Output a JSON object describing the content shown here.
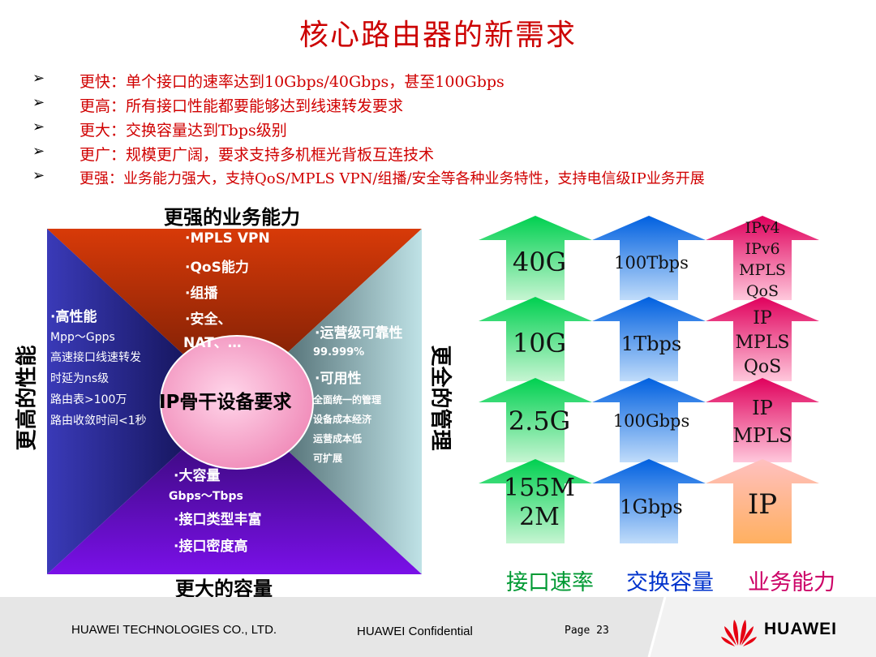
{
  "title": "核心路由器的新需求",
  "bullets": [
    {
      "mark": "➢",
      "text": "更快：单个接口的速率达到10Gbps/40Gbps，甚至100Gbps"
    },
    {
      "mark": "➢",
      "text": "更高：所有接口性能都要能够达到线速转发要求"
    },
    {
      "mark": "➢",
      "text": "更大：交换容量达到Tbps级别"
    },
    {
      "mark": "➢",
      "text": "更广：规模更广阔，要求支持多机框光背板互连技术"
    },
    {
      "mark": "➢",
      "text": "更强：业务能力强大，支持QoS/MPLS VPN/组播/安全等各种业务特性，支持电信级IP业务开展"
    }
  ],
  "diagram": {
    "top_label": "更强的业务能力",
    "bottom_label": "更大的容量",
    "left_label": "更高的性能",
    "right_label": "更全的管理",
    "center": "IP骨干设备要求",
    "top_items": [
      "·MPLS VPN",
      "·QoS能力",
      "·组播",
      "·安全、",
      "NAT、…"
    ],
    "left_items": [
      "·高性能",
      "Mpp～Gpps",
      "高速接口线速转发",
      "时延为ns级",
      "路由表>100万",
      "路由收敛时间<1秒"
    ],
    "right_items": [
      "·运营级可靠性",
      "99.999%",
      "·可用性",
      "全面统一的管理",
      "设备成本经济",
      "运营成本低",
      "可扩展"
    ],
    "bottom_items": [
      "·大容量",
      "Gbps～Tbps",
      "·接口类型丰富",
      "·接口密度高"
    ]
  },
  "columns": [
    {
      "caption": "接口速率",
      "caption_color": "#009933",
      "levels": [
        "40G",
        "10G",
        "2.5G",
        "155M\n2M"
      ]
    },
    {
      "caption": "交换容量",
      "caption_color": "#0033cc",
      "levels": [
        "100Tbps",
        "1Tbps",
        "100Gbps",
        "1Gbps"
      ]
    },
    {
      "caption": "业务能力",
      "caption_color": "#cc0066",
      "levels": [
        "IPv4\nIPv6\nMPLS\nQoS",
        "IP\nMPLS\nQoS",
        "IP\nMPLS",
        "IP"
      ]
    }
  ],
  "footer": {
    "company": "HUAWEI TECHNOLOGIES CO., LTD.",
    "confidential": "HUAWEI Confidential",
    "page": "Page 23",
    "brand": "HUAWEI"
  },
  "colors": {
    "title": "#cc0000",
    "bullets": "#d00000"
  }
}
